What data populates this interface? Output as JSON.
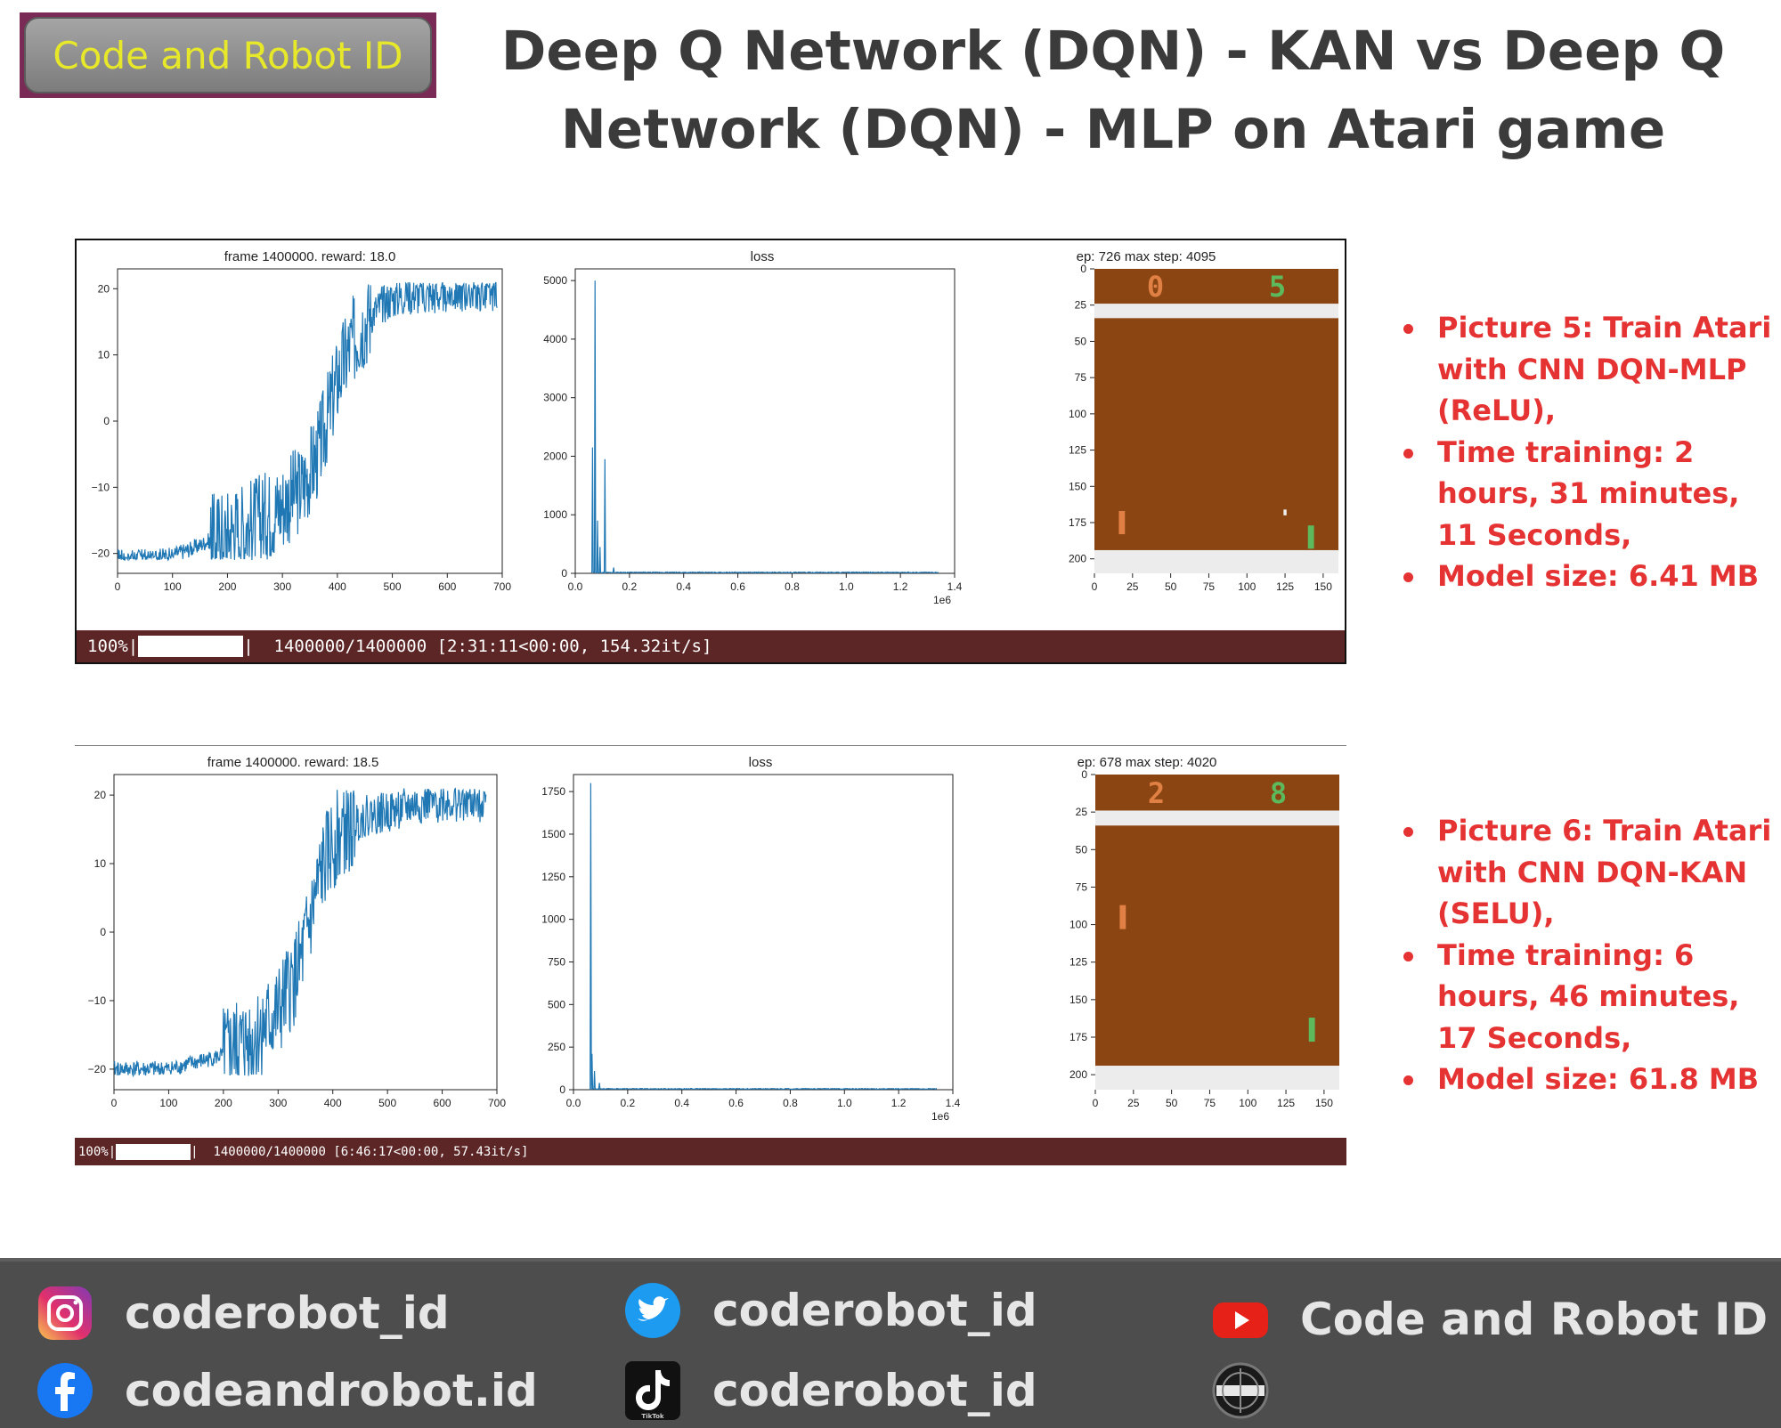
{
  "logo": {
    "text": "Code and Robot ID"
  },
  "title": "Deep Q Network (DQN) - KAN vs Deep Q Network (DQN) - MLP on Atari game",
  "colors": {
    "line": "#1f77b4",
    "court": "#8b4513",
    "wall": "#ececec",
    "left_score": "#e08044",
    "right_score": "#5cba5c",
    "progress_bar": "#5d2626",
    "note_text": "#e53232",
    "title_text": "#3b3b3b"
  },
  "chart_data": [
    {
      "type": "line",
      "title": "frame 1400000. reward: 18.0",
      "xlim": [
        0,
        730
      ],
      "ylim": [
        -23,
        23
      ],
      "xticks": [
        "0",
        "100",
        "200",
        "300",
        "400",
        "500",
        "600",
        "700"
      ],
      "yticks": [
        "20",
        "10",
        "0",
        "−10",
        "−20"
      ],
      "series": [
        {
          "x": [
            0,
            50,
            100,
            150,
            200,
            250,
            300,
            350,
            380,
            400,
            420,
            440,
            460,
            480,
            500,
            520,
            550,
            600,
            650,
            700,
            720
          ],
          "y": [
            -20.5,
            -20.5,
            -20.3,
            -19,
            -17,
            -15.5,
            -13.5,
            -10,
            -5,
            1,
            7,
            11,
            14,
            16,
            17.5,
            18.5,
            19,
            19,
            19.5,
            19.5,
            19.5
          ]
        }
      ]
    },
    {
      "type": "line",
      "title": "loss",
      "xlim": [
        0,
        1400000
      ],
      "ylim": [
        0,
        5200
      ],
      "xticks": [
        "0.0",
        "0.2",
        "0.4",
        "0.6",
        "0.8",
        "1.0",
        "1.2",
        "1.4"
      ],
      "yticks": [
        "5000",
        "4000",
        "3000",
        "2000",
        "1000",
        "0"
      ],
      "x_exponent": "1e6",
      "series": [
        {
          "peaks": [
            {
              "x": 15000,
              "y": 5000
            },
            {
              "x": 5000,
              "y": 2150
            },
            {
              "x": 55000,
              "y": 1950
            },
            {
              "x": 25000,
              "y": 900
            },
            {
              "x": 35000,
              "y": 450
            },
            {
              "x": 90000,
              "y": 100
            }
          ],
          "baseline": 15
        }
      ]
    },
    {
      "type": "image",
      "title": "ep: 726 max step: 4095",
      "xlim": [
        0,
        160
      ],
      "ylim": [
        210,
        0
      ],
      "xticks": [
        "0",
        "25",
        "50",
        "75",
        "100",
        "125",
        "150"
      ],
      "yticks": [
        "0",
        "25",
        "50",
        "75",
        "100",
        "125",
        "150",
        "175",
        "200"
      ],
      "scores": {
        "left": "0",
        "right": "5"
      },
      "left_paddle_y": 175,
      "right_paddle_y": 185,
      "ball": {
        "x": 124,
        "y": 168
      }
    },
    {
      "type": "line",
      "title": "frame 1400000. reward: 18.5",
      "xlim": [
        0,
        700
      ],
      "ylim": [
        -23,
        23
      ],
      "xticks": [
        "0",
        "100",
        "200",
        "300",
        "400",
        "500",
        "600",
        "700"
      ],
      "yticks": [
        "20",
        "10",
        "0",
        "−10",
        "−20"
      ],
      "series": [
        {
          "x": [
            0,
            50,
            100,
            150,
            200,
            250,
            300,
            340,
            360,
            380,
            400,
            420,
            440,
            460,
            500,
            550,
            600,
            650,
            680
          ],
          "y": [
            -20,
            -20,
            -20,
            -19,
            -18,
            -16,
            -12,
            -5,
            2,
            9,
            13,
            15,
            16,
            17,
            17.5,
            18.5,
            19,
            19,
            19
          ]
        }
      ]
    },
    {
      "type": "line",
      "title": "loss",
      "xlim": [
        0,
        1400000
      ],
      "ylim": [
        0,
        1850
      ],
      "xticks": [
        "0.0",
        "0.2",
        "0.4",
        "0.6",
        "0.8",
        "1.0",
        "1.2",
        "1.4"
      ],
      "yticks": [
        "1750",
        "1500",
        "1250",
        "1000",
        "750",
        "500",
        "250",
        "0"
      ],
      "x_exponent": "1e6",
      "series": [
        {
          "peaks": [
            {
              "x": 5000,
              "y": 1800
            },
            {
              "x": 10000,
              "y": 210
            },
            {
              "x": 20000,
              "y": 110
            },
            {
              "x": 40000,
              "y": 40
            }
          ],
          "baseline": 5
        }
      ]
    },
    {
      "type": "image",
      "title": "ep: 678 max step: 4020",
      "xlim": [
        0,
        160
      ],
      "ylim": [
        210,
        0
      ],
      "xticks": [
        "0",
        "25",
        "50",
        "75",
        "100",
        "125",
        "150"
      ],
      "yticks": [
        "0",
        "25",
        "50",
        "75",
        "100",
        "125",
        "150",
        "175",
        "200"
      ],
      "scores": {
        "left": "2",
        "right": "8"
      },
      "left_paddle_y": 95,
      "right_paddle_y": 170
    }
  ],
  "progress": [
    {
      "percent": "100%",
      "status": "1400000/1400000 [2:31:11<00:00, 154.32it/s]"
    },
    {
      "percent": "100%",
      "status": "1400000/1400000 [6:46:17<00:00, 57.43it/s]"
    }
  ],
  "notes": [
    [
      "Picture 5: Train Atari with CNN DQN-MLP (ReLU),",
      "Time training: 2 hours, 31 minutes, 11 Seconds,",
      "Model size: 6.41 MB"
    ],
    [
      "Picture 6: Train Atari with CNN DQN-KAN (SELU),",
      "Time training: 6 hours, 46 minutes, 17 Seconds,",
      "Model size: 61.8 MB"
    ]
  ],
  "footer": {
    "instagram": "coderobot_id",
    "twitter": "coderobot_id",
    "youtube": "Code and Robot ID",
    "facebook": "codeandrobot.id",
    "tiktok": "coderobot_id",
    "tiktok_icon_caption": "TikTok"
  }
}
